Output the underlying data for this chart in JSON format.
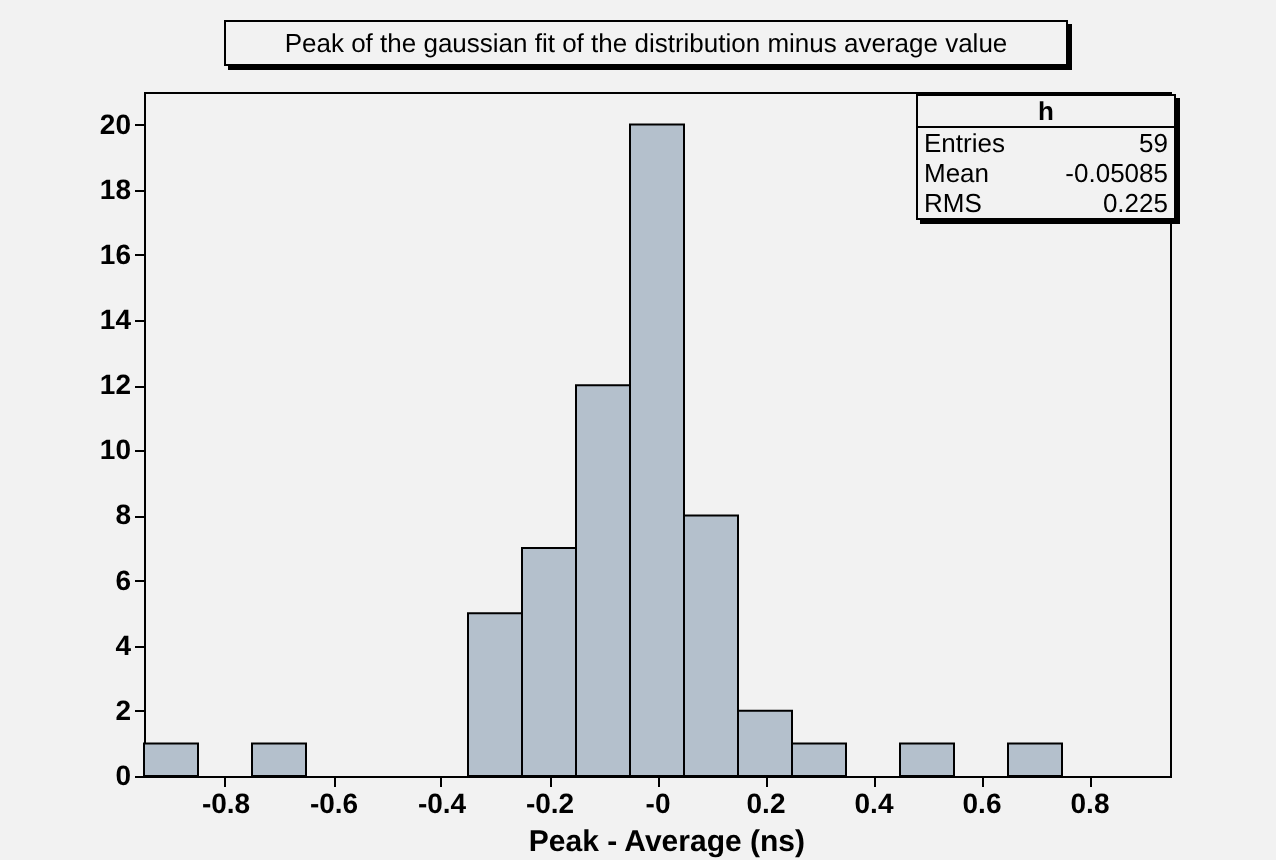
{
  "chart_data": {
    "type": "histogram",
    "title": "Peak of the gaussian fit of the distribution minus average value",
    "xlabel": "Peak - Average (ns)",
    "bins": [
      -0.95,
      -0.85,
      -0.75,
      -0.65,
      -0.55,
      -0.45,
      -0.35,
      -0.25,
      -0.15,
      -0.05,
      0.05,
      0.15,
      0.25,
      0.35,
      0.45,
      0.55,
      0.65,
      0.75,
      0.85,
      0.95
    ],
    "values": [
      1,
      0,
      1,
      0,
      0,
      0,
      5,
      7,
      12,
      20,
      8,
      2,
      1,
      0,
      1,
      0,
      1,
      0,
      0
    ],
    "color": "#b4c0cc",
    "xlim": [
      -0.95,
      0.95
    ],
    "xticks": [
      -0.8,
      -0.6,
      -0.4,
      -0.2,
      {
        "value": 0,
        "label": "-0"
      },
      0.2,
      0.4,
      0.6,
      0.8
    ],
    "ylim": [
      0,
      21
    ],
    "yticks": [
      0,
      2,
      4,
      6,
      8,
      10,
      12,
      14,
      16,
      18,
      20
    ],
    "grid": false,
    "annotations": [
      "h",
      "Entries",
      "59",
      "Mean",
      "-0.05085",
      "RMS",
      "0.225"
    ]
  }
}
